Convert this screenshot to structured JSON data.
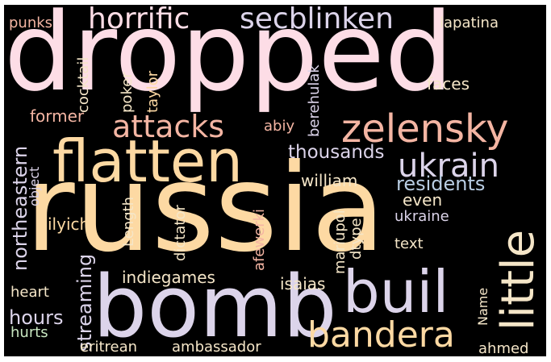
{
  "palette": {
    "pink": "#fddde6",
    "peach": "#fdd9a3",
    "lavender": "#dcd4ea",
    "salmon": "#f4b5a3",
    "cream": "#f5e6c8",
    "blue": "#b9cde3",
    "green": "#c8e6c0",
    "background": "#000000",
    "frame": "#ffffff"
  },
  "words": {
    "dropped": "dropped",
    "russia": "russia",
    "bomb": "bomb",
    "flatten": "flatten",
    "buil": "buil",
    "zelensky": "zelensky",
    "bandera": "bandera",
    "little": "little",
    "horrific": "horrific",
    "secblinken": "secblinken",
    "attacks": "attacks",
    "ukrain": "ukrain",
    "thousands": "thousands",
    "residents": "residents",
    "northeastern": "northeastern",
    "streaming": "streaming",
    "hours": "hours",
    "punks": "punks",
    "lapatina": "lapatina",
    "cocktail": "cocktail",
    "poker": "poker",
    "taylor": "taylor",
    "berehulak": "berehulak",
    "faces": "faces",
    "former": "former",
    "abiy": "abiy",
    "object": "object",
    "william": "william",
    "even": "even",
    "dictator": "dictator",
    "afewerki": "afewerki",
    "ilyich": "ilyich",
    "length": "Length",
    "mariupol": "mariupol",
    "dtype": "dtype",
    "ukraine": "ukraine",
    "text": "text",
    "indiegames": "indiegames",
    "isaias": "isaias",
    "heart": "heart",
    "name": "Name",
    "hurts": "hurts",
    "eritrean": "eritrean",
    "ambassador": "ambassador",
    "ahmed": "ahmed"
  }
}
